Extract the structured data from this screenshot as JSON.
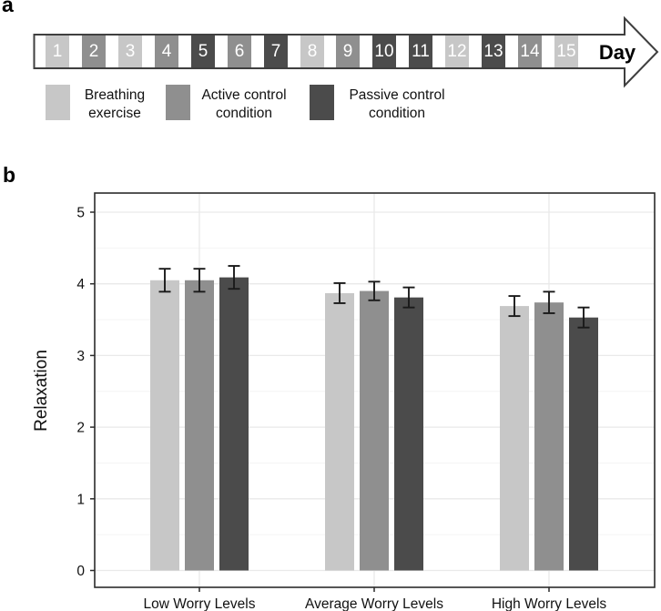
{
  "colors": {
    "breathing": "#c7c7c7",
    "active": "#8f8f8f",
    "passive": "#4b4b4b",
    "arrow_outline": "#3f3f3f",
    "day_number": "#ffffff",
    "error_bar": "#1a1a1a",
    "grid_major": "#e9e9e9",
    "grid_minor": "#f4f4f4",
    "panel_border": "#2b2b2b",
    "text": "#111111"
  },
  "panels": {
    "a_label": "a",
    "b_label": "b"
  },
  "timeline": {
    "arrow_label": "Day",
    "days": [
      {
        "num": "1",
        "condition": "breathing"
      },
      {
        "num": "2",
        "condition": "active"
      },
      {
        "num": "3",
        "condition": "breathing"
      },
      {
        "num": "4",
        "condition": "active"
      },
      {
        "num": "5",
        "condition": "passive"
      },
      {
        "num": "6",
        "condition": "active"
      },
      {
        "num": "7",
        "condition": "passive"
      },
      {
        "num": "8",
        "condition": "breathing"
      },
      {
        "num": "9",
        "condition": "active"
      },
      {
        "num": "10",
        "condition": "passive"
      },
      {
        "num": "11",
        "condition": "passive"
      },
      {
        "num": "12",
        "condition": "breathing"
      },
      {
        "num": "13",
        "condition": "passive"
      },
      {
        "num": "14",
        "condition": "active"
      },
      {
        "num": "15",
        "condition": "breathing"
      }
    ],
    "legend": [
      {
        "condition": "breathing",
        "line1": "Breathing",
        "line2": "exercise"
      },
      {
        "condition": "active",
        "line1": "Active control",
        "line2": "condition"
      },
      {
        "condition": "passive",
        "line1": "Passive control",
        "line2": "condition"
      }
    ]
  },
  "chart_data": {
    "type": "bar",
    "title": "",
    "xlabel": "",
    "ylabel": "Relaxation",
    "ylim": [
      0,
      5.27
    ],
    "yticks": [
      0,
      1,
      2,
      3,
      4,
      5
    ],
    "minor_grid_step": 0.5,
    "grid": true,
    "legend_position": "none",
    "categories": [
      "Low Worry Levels",
      "Average Worry Levels",
      "High Worry Levels"
    ],
    "series": [
      {
        "name": "Breathing exercise",
        "condition": "breathing",
        "values": [
          4.05,
          3.87,
          3.69
        ],
        "errors": [
          0.16,
          0.14,
          0.14
        ]
      },
      {
        "name": "Active control condition",
        "condition": "active",
        "values": [
          4.05,
          3.9,
          3.74
        ],
        "errors": [
          0.16,
          0.13,
          0.15
        ]
      },
      {
        "name": "Passive control condition",
        "condition": "passive",
        "values": [
          4.09,
          3.81,
          3.53
        ],
        "errors": [
          0.16,
          0.14,
          0.14
        ]
      }
    ]
  }
}
